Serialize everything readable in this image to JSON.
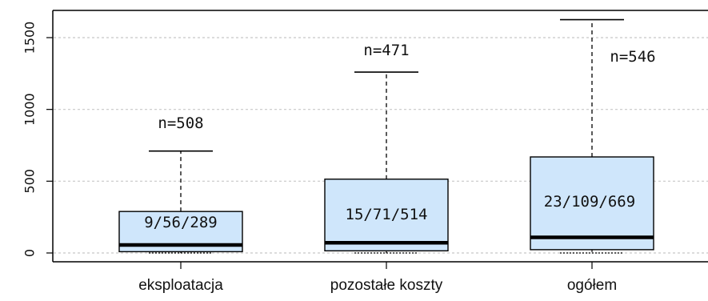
{
  "chart_data": {
    "type": "boxplot",
    "categories": [
      "eksploatacja",
      "pozostałe koszty",
      "ogółem"
    ],
    "boxes": [
      {
        "category": "eksploatacja",
        "min": 0,
        "q1": 9,
        "median": 56,
        "q3": 289,
        "whisker_high": 710,
        "n_label": "n=508",
        "quartile_label": "9/56/289"
      },
      {
        "category": "pozostałe koszty",
        "min": 0,
        "q1": 15,
        "median": 71,
        "q3": 514,
        "whisker_high": 1260,
        "n_label": "n=471",
        "quartile_label": "15/71/514"
      },
      {
        "category": "ogółem",
        "min": 0,
        "q1": 23,
        "median": 109,
        "q3": 669,
        "whisker_high": 1625,
        "n_label": "n=546",
        "quartile_label": "23/109/669"
      }
    ],
    "yticks": [
      0,
      500,
      1000,
      1500
    ],
    "ylim": [
      -60,
      1700
    ],
    "grid": true,
    "colors": {
      "box_fill": "#cfe6fb",
      "stroke": "#000000",
      "grid": "#c8c8c8"
    }
  }
}
